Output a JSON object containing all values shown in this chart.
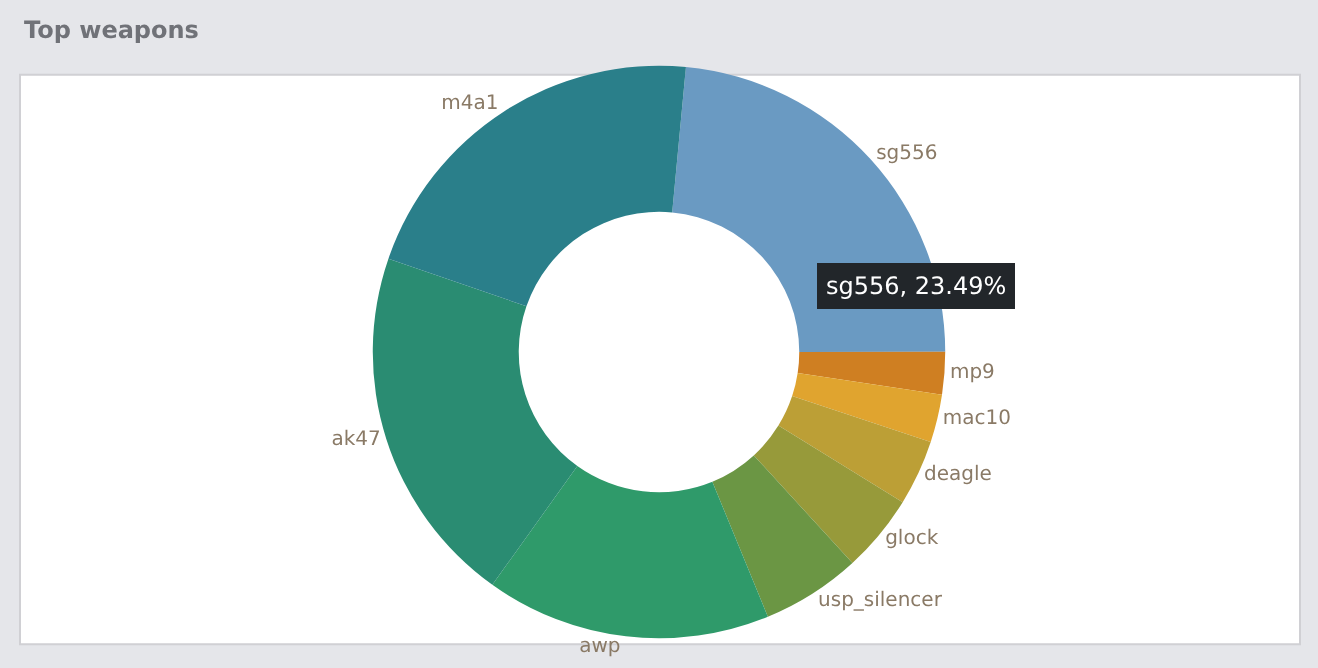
{
  "chart_data": {
    "type": "donut",
    "title": "Top weapons",
    "categories": [
      "sg556",
      "mp9",
      "mac10",
      "deagle",
      "glock",
      "usp_silencer",
      "awp",
      "ak47",
      "m4a1"
    ],
    "values": [
      23.49,
      2.4,
      2.7,
      3.7,
      4.4,
      5.6,
      16.1,
      20.4,
      21.21
    ],
    "colors": [
      "#6a9ac2",
      "#cf7f22",
      "#e0a42f",
      "#bc9f36",
      "#979a3a",
      "#6b9644",
      "#2f9a6a",
      "#2a8c72",
      "#2a7f8a"
    ],
    "annotations": [
      "sg556, 23.49%"
    ],
    "legend": false
  }
}
